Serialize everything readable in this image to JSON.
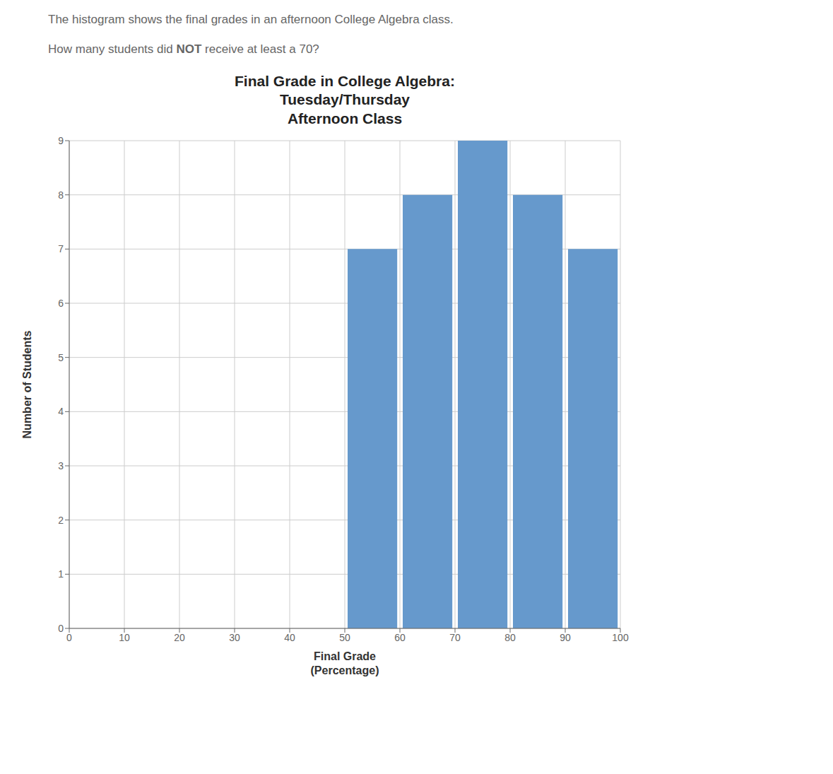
{
  "chart_data": {
    "type": "histogram",
    "title": "Final Grade in College Algebra:\nTuesday/Thursday\nAfternoon Class",
    "xlabel": "Final Grade\n(Percentage)",
    "ylabel": "Number of Students",
    "bins": [
      50,
      60,
      70,
      80,
      90,
      100
    ],
    "values": [
      7,
      8,
      9,
      8,
      7
    ],
    "color": "#6699CC",
    "xlim": [
      0,
      100
    ],
    "xticks": [
      0,
      10,
      20,
      30,
      40,
      50,
      60,
      70,
      80,
      90,
      100
    ],
    "ylim": [
      0,
      9
    ],
    "yticks": [
      0,
      1,
      2,
      3,
      4,
      5,
      6,
      7,
      8,
      9
    ],
    "grid": true,
    "annotations": [
      "The histogram shows the final grades in an afternoon College Algebra class.",
      "How many students did NOT receive at least a 70?"
    ]
  }
}
